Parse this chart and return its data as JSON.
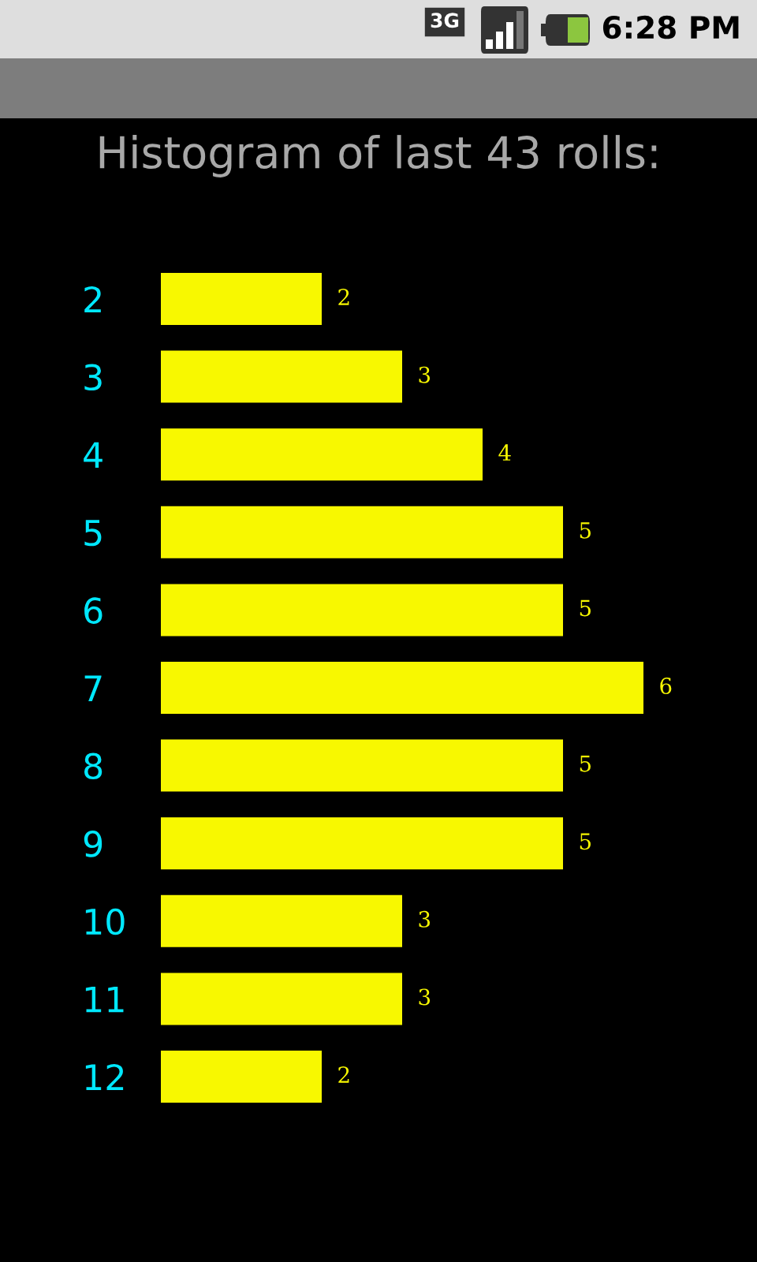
{
  "chart_data": {
    "type": "bar",
    "orientation": "horizontal",
    "title": "Histogram of last 43 rolls:",
    "categories": [
      "2",
      "3",
      "4",
      "5",
      "6",
      "7",
      "8",
      "9",
      "10",
      "11",
      "12"
    ],
    "values": [
      2,
      3,
      4,
      5,
      5,
      6,
      5,
      5,
      3,
      3,
      2
    ],
    "color": "#f8f800",
    "data_labels": true,
    "tick_labels": "y",
    "annotations": [
      "3G",
      "6:28 PM"
    ]
  }
}
